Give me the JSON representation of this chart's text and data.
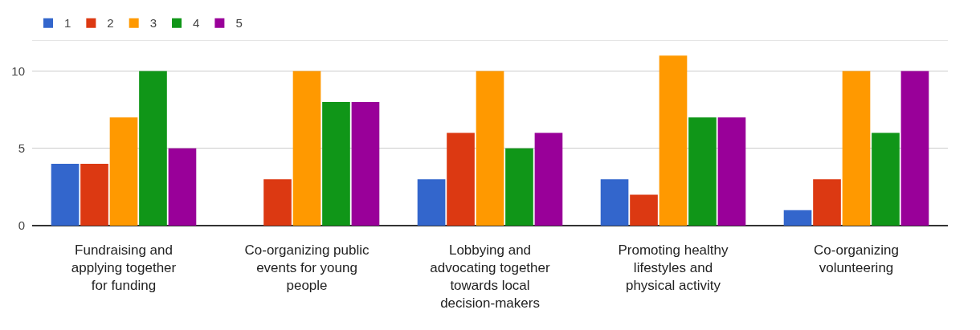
{
  "chart_data": {
    "type": "bar",
    "categories": [
      "Fundraising and applying together for funding",
      "Co-organizing public events for young people",
      "Lobbying and advocating together towards local decision-makers",
      "Promoting healthy lifestyles and physical activity",
      "Co-organizing volunteering"
    ],
    "series": [
      {
        "name": "1",
        "color": "#3366cc",
        "values": [
          4,
          0,
          3,
          3,
          1
        ]
      },
      {
        "name": "2",
        "color": "#dc3912",
        "values": [
          4,
          3,
          6,
          2,
          3
        ]
      },
      {
        "name": "3",
        "color": "#ff9900",
        "values": [
          7,
          10,
          10,
          11,
          10
        ]
      },
      {
        "name": "4",
        "color": "#109618",
        "values": [
          10,
          8,
          5,
          7,
          6
        ]
      },
      {
        "name": "5",
        "color": "#990099",
        "values": [
          5,
          8,
          6,
          7,
          10
        ]
      }
    ],
    "ylim": [
      0,
      12
    ],
    "yticks": [
      0,
      5,
      10
    ],
    "grid": "y",
    "legend": "top left"
  }
}
